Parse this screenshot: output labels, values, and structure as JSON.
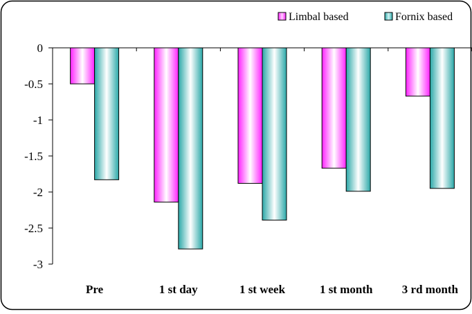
{
  "chart_data": {
    "type": "bar",
    "categories": [
      "Pre",
      "1 st day",
      "1 st week",
      "1 st month",
      "3 rd month"
    ],
    "series": [
      {
        "name": "Limbal based",
        "values": [
          -0.5,
          -2.14,
          -1.88,
          -1.67,
          -0.67
        ],
        "color": "#ff33ff"
      },
      {
        "name": "Fornix based",
        "values": [
          -1.83,
          -2.79,
          -2.39,
          -1.99,
          -1.95
        ],
        "color": "#33b3b3"
      }
    ],
    "ylim": [
      -3,
      0
    ],
    "yticks": [
      "0",
      "-0.5",
      "-1",
      "-1.5",
      "-2",
      "-2.5",
      "-3"
    ],
    "legend_position": "top-right",
    "grid": false,
    "title": "",
    "xlabel": "",
    "ylabel": ""
  }
}
